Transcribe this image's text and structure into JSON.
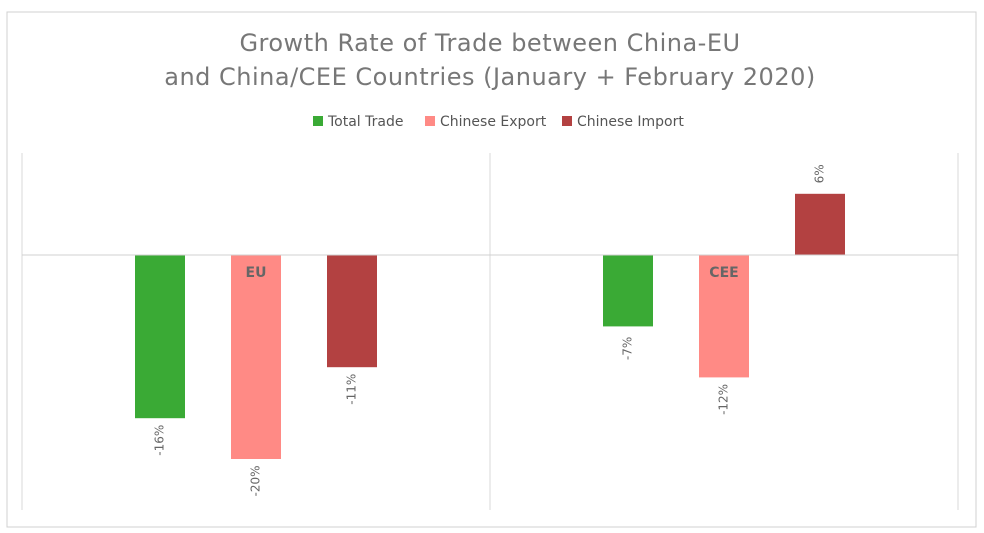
{
  "chart_data": {
    "type": "bar",
    "title": [
      "Growth Rate of Trade between China-EU",
      "and China/CEE Countries (January + February 2020)"
    ],
    "categories": [
      "EU",
      "CEE"
    ],
    "series": [
      {
        "name": "Total Trade",
        "color": "#3aaa35",
        "values": [
          -16,
          -7
        ],
        "value_labels": [
          "-16%",
          "-7%"
        ]
      },
      {
        "name": "Chinese Export",
        "color": "#ff8a85",
        "values": [
          -20,
          -12
        ],
        "value_labels": [
          "-20%",
          "-12%"
        ]
      },
      {
        "name": "Chinese Import",
        "color": "#b34141",
        "values": [
          -11,
          6
        ],
        "value_labels": [
          "-11%",
          "6%"
        ]
      }
    ],
    "ylim": [
      -25,
      10
    ],
    "legend": "top"
  }
}
